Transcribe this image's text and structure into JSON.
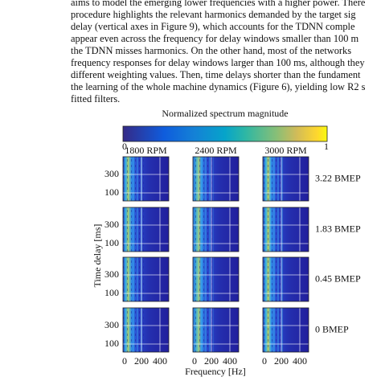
{
  "paragraph": {
    "lines": [
      "aims to model the emerging lower frequencies with a higher power. There",
      "procedure highlights the relevant harmonics demanded by the target sig",
      "delay (vertical axes in Figure 9), which accounts for the TDNN comple",
      "appear even across the frequency for delay windows smaller than 100 m",
      "the TDNN misses harmonics. On the other hand, most of the networks",
      "frequency responses for delay windows larger than 100 ms, although they",
      "different weighting values. Then, time delays shorter than the fundament",
      "the learning of the whole machine dynamics (Figure 6), yielding low R2 s",
      "fitted filters."
    ]
  },
  "figure": {
    "colorbar": {
      "title": "Normalized spectrum magnitude",
      "min_label": "0",
      "max_label": "1"
    },
    "columns": [
      "1800 RPM",
      "2400 RPM",
      "3000 RPM"
    ],
    "rows": [
      "3.22 BMEP",
      "1.83 BMEP",
      "0.45 BMEP",
      "0 BMEP"
    ],
    "y_axis": {
      "label": "Time delay [ms]",
      "ticks": [
        "300",
        "100"
      ]
    },
    "x_axis": {
      "label": "Frequency [Hz]",
      "ticks": [
        "0",
        "200",
        "400"
      ]
    }
  }
}
